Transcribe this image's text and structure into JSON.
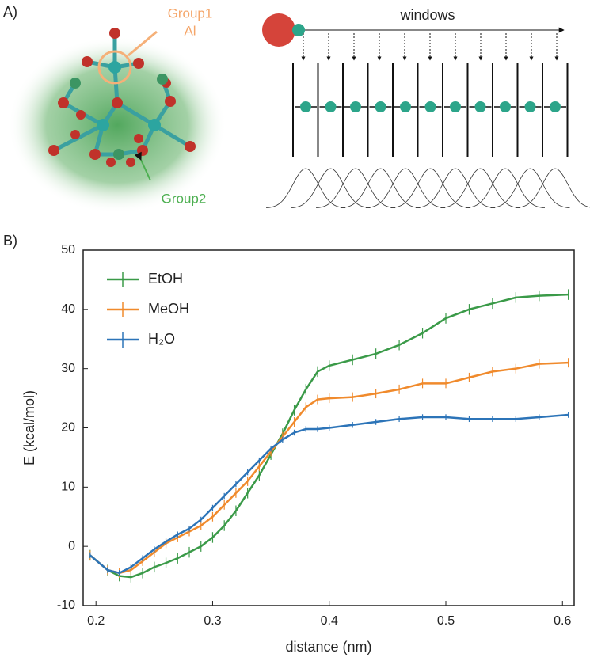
{
  "figure": {
    "panel_a_label": "A)",
    "panel_b_label": "B)",
    "group1": "Group1",
    "group1_atom": "Al",
    "group2": "Group2",
    "windows": "windows"
  },
  "chart_data": {
    "type": "line",
    "xlabel": "distance (nm)",
    "ylabel": "E (kcal/mol)",
    "xlim": [
      0.189,
      0.61
    ],
    "ylim": [
      -10,
      50
    ],
    "xticks": [
      0.2,
      0.3,
      0.4,
      0.5,
      0.6
    ],
    "yticks": [
      -10,
      0,
      10,
      20,
      30,
      40,
      50
    ],
    "legend": "upper left",
    "x": [
      0.195,
      0.21,
      0.22,
      0.23,
      0.24,
      0.25,
      0.26,
      0.27,
      0.28,
      0.29,
      0.3,
      0.31,
      0.32,
      0.33,
      0.34,
      0.35,
      0.36,
      0.37,
      0.38,
      0.39,
      0.4,
      0.42,
      0.44,
      0.46,
      0.48,
      0.5,
      0.52,
      0.54,
      0.56,
      0.58,
      0.605
    ],
    "series": [
      {
        "name": "EtOH",
        "color": "#3a9a48",
        "error": 0.9,
        "values": [
          -1.5,
          -4,
          -5,
          -5.2,
          -4.5,
          -3.5,
          -2.8,
          -2,
          -1,
          0,
          1.5,
          3.5,
          6,
          9,
          12,
          15.5,
          19,
          23,
          26.5,
          29.5,
          30.5,
          31.5,
          32.5,
          34,
          36,
          38.5,
          40,
          41,
          42,
          42.3,
          42.5
        ]
      },
      {
        "name": "MeOH",
        "color": "#f08a2c",
        "error": 0.8,
        "values": [
          -1.5,
          -4,
          -4.5,
          -4,
          -2.5,
          -1,
          0.5,
          1.5,
          2.5,
          3.5,
          5,
          7,
          9,
          11,
          13.5,
          16,
          18.5,
          21,
          23.5,
          24.8,
          25,
          25.2,
          25.8,
          26.5,
          27.5,
          27.5,
          28.5,
          29.5,
          30,
          30.8,
          31
        ]
      },
      {
        "name": "H₂O",
        "color": "#2c74b8",
        "error": 0.5,
        "values": [
          -1.5,
          -4,
          -4.5,
          -3.5,
          -2,
          -0.5,
          0.8,
          2,
          3,
          4.5,
          6.5,
          8.5,
          10.5,
          12.5,
          14.5,
          16.5,
          18,
          19.2,
          19.8,
          19.8,
          20,
          20.5,
          21,
          21.5,
          21.8,
          21.8,
          21.5,
          21.5,
          21.5,
          21.8,
          22.2
        ]
      }
    ]
  }
}
